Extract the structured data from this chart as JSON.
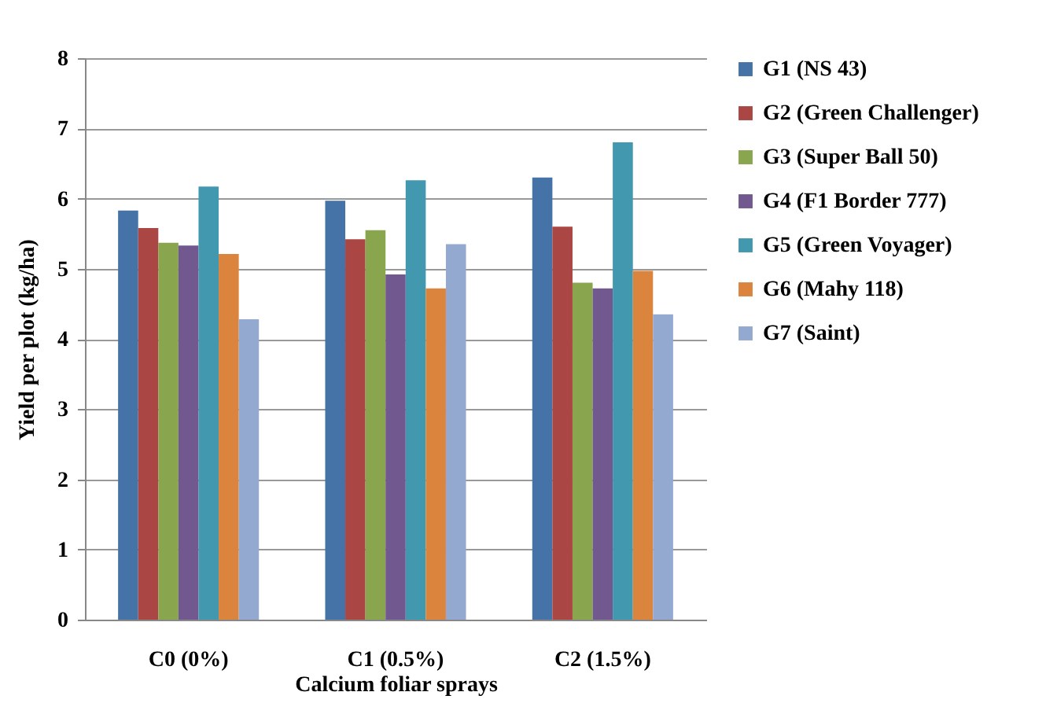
{
  "chart_data": {
    "type": "bar",
    "xlabel": "Calcium foliar sprays",
    "ylabel": "Yield per plot (kg/ha)",
    "categories": [
      "C0 (0%)",
      "C1 (0.5%)",
      "C2 (1.5%)"
    ],
    "series": [
      {
        "name": "G1 (NS 43)",
        "color": "#4572a7",
        "values": [
          5.83,
          5.97,
          6.3
        ]
      },
      {
        "name": "G2 (Green Challenger)",
        "color": "#aa4643",
        "values": [
          5.58,
          5.42,
          5.6
        ]
      },
      {
        "name": "G3 (Super Ball 50)",
        "color": "#89a54e",
        "values": [
          5.37,
          5.55,
          4.8
        ]
      },
      {
        "name": "G4 (F1 Border 777)",
        "color": "#71588f",
        "values": [
          5.33,
          4.92,
          4.72
        ]
      },
      {
        "name": "G5 (Green Voyager)",
        "color": "#4198af",
        "values": [
          6.17,
          6.26,
          6.8
        ]
      },
      {
        "name": "G6 (Mahy 118)",
        "color": "#db843d",
        "values": [
          5.21,
          4.72,
          4.97
        ]
      },
      {
        "name": "G7 (Saint)",
        "color": "#93a9cf",
        "values": [
          4.28,
          5.35,
          4.35
        ]
      }
    ],
    "ylim": [
      0,
      8
    ],
    "yticks": [
      0,
      1,
      2,
      3,
      4,
      5,
      6,
      7,
      8
    ],
    "grid": "y",
    "legend": "right"
  }
}
